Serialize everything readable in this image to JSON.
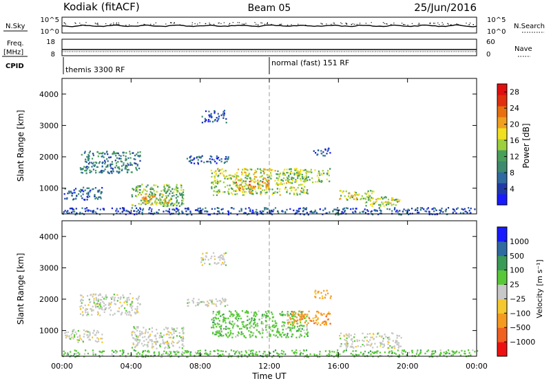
{
  "header": {
    "site": "Kodiak (fitACF)",
    "beam": "Beam 05",
    "date": "25/Jun/2016"
  },
  "ops_panels": {
    "nsky": {
      "label": "N.Sky",
      "left_ticks": [
        "10^5",
        "10^0"
      ],
      "right_ticks": [
        "10^5",
        "10^0"
      ],
      "right_label": "N.Search"
    },
    "freq": {
      "label_line1": "Freq.",
      "label_line2": "[MHz]",
      "left_ticks": [
        "18",
        "8"
      ],
      "right_ticks": [
        "60",
        "0"
      ],
      "right_label": "Nave"
    },
    "cpid": {
      "label": "CPID",
      "modes": [
        {
          "name": "themis 3300 RF",
          "start_hour": 0
        },
        {
          "name": "normal (fast) 151 RF",
          "start_hour": 12
        }
      ]
    }
  },
  "colors": {
    "power": [
      "#1a1aff",
      "#1f3aa8",
      "#2f6aa0",
      "#3d8a6e",
      "#4aa05a",
      "#9ecf3c",
      "#f0e020",
      "#f0a020",
      "#e87010",
      "#e03010",
      "#e01010"
    ],
    "velocity": [
      "#ee1111",
      "#f06020",
      "#f59a20",
      "#f5c830",
      "#c8c8c8",
      "#58c838",
      "#3a9a58",
      "#2f6aa0",
      "#1a1aff"
    ],
    "mode_line": "#999999"
  },
  "chart_data": [
    {
      "type": "heatmap",
      "name": "power",
      "xlabel": "Time UT",
      "ylabel": "Slant Range [km]",
      "x_unit": "hour UT",
      "xlim": [
        0,
        24
      ],
      "ylim": [
        180,
        4500
      ],
      "x_ticks": [
        "00:00",
        "04:00",
        "08:00",
        "12:00",
        "16:00",
        "20:00",
        "00:00"
      ],
      "y_ticks": [
        "1000",
        "2000",
        "3000",
        "4000"
      ],
      "colorbar": {
        "label": "Power [dB]",
        "ticks": [
          "4",
          "8",
          "12",
          "16",
          "20",
          "24",
          "28"
        ],
        "range": [
          0,
          30
        ]
      },
      "regions": [
        {
          "t0": 0.1,
          "t1": 2.3,
          "r0": 650,
          "r1": 1050,
          "level": 0.22
        },
        {
          "t0": 1.0,
          "t1": 4.5,
          "r0": 1500,
          "r1": 2200,
          "level": 0.3
        },
        {
          "t0": 4.0,
          "t1": 7.0,
          "r0": 450,
          "r1": 1150,
          "level": 0.42
        },
        {
          "t0": 4.5,
          "t1": 6.3,
          "r0": 500,
          "r1": 850,
          "level": 0.62
        },
        {
          "t0": 7.2,
          "t1": 9.6,
          "r0": 1800,
          "r1": 2050,
          "level": 0.18
        },
        {
          "t0": 8.0,
          "t1": 9.5,
          "r0": 3100,
          "r1": 3500,
          "level": 0.15
        },
        {
          "t0": 8.6,
          "t1": 14.2,
          "r0": 800,
          "r1": 1650,
          "level": 0.52
        },
        {
          "t0": 10.0,
          "t1": 12.0,
          "r0": 950,
          "r1": 1350,
          "level": 0.68
        },
        {
          "t0": 13.0,
          "t1": 15.5,
          "r0": 1200,
          "r1": 1650,
          "level": 0.48
        },
        {
          "t0": 14.5,
          "t1": 15.6,
          "r0": 2050,
          "r1": 2300,
          "level": 0.15
        },
        {
          "t0": 16.0,
          "t1": 18.0,
          "r0": 650,
          "r1": 950,
          "level": 0.55
        },
        {
          "t0": 17.5,
          "t1": 19.6,
          "r0": 450,
          "r1": 750,
          "level": 0.5
        },
        {
          "t0": 0.0,
          "t1": 24.0,
          "r0": 180,
          "r1": 400,
          "level": 0.18
        }
      ]
    },
    {
      "type": "heatmap",
      "name": "velocity",
      "xlabel": "Time UT",
      "ylabel": "Slant Range [km]",
      "x_unit": "hour UT",
      "xlim": [
        0,
        24
      ],
      "ylim": [
        180,
        4500
      ],
      "x_ticks": [
        "00:00",
        "04:00",
        "08:00",
        "12:00",
        "16:00",
        "20:00",
        "00:00"
      ],
      "y_ticks": [
        "1000",
        "2000",
        "3000",
        "4000"
      ],
      "colorbar": {
        "label": "Velocity [m s⁻¹]",
        "ticks": [
          "1000",
          "500",
          "100",
          "25",
          "−25",
          "−100",
          "−500",
          "−1000"
        ]
      },
      "regions": [
        {
          "t0": 0.1,
          "t1": 2.3,
          "r0": 650,
          "r1": 1050,
          "cls": 4
        },
        {
          "t0": 1.0,
          "t1": 4.5,
          "r0": 1500,
          "r1": 2200,
          "cls": 4
        },
        {
          "t0": 4.0,
          "t1": 7.0,
          "r0": 450,
          "r1": 1150,
          "cls": 4
        },
        {
          "t0": 7.2,
          "t1": 9.6,
          "r0": 1800,
          "r1": 2050,
          "cls": 4
        },
        {
          "t0": 8.0,
          "t1": 9.5,
          "r0": 3100,
          "r1": 3500,
          "cls": 4
        },
        {
          "t0": 8.6,
          "t1": 14.2,
          "r0": 800,
          "r1": 1650,
          "cls": 5
        },
        {
          "t0": 13.0,
          "t1": 15.5,
          "r0": 1200,
          "r1": 1650,
          "cls": 2
        },
        {
          "t0": 14.5,
          "t1": 15.6,
          "r0": 2050,
          "r1": 2300,
          "cls": 2
        },
        {
          "t0": 16.0,
          "t1": 19.6,
          "r0": 450,
          "r1": 950,
          "cls": 4
        },
        {
          "t0": 0.0,
          "t1": 24.0,
          "r0": 180,
          "r1": 400,
          "cls": 5
        }
      ]
    }
  ]
}
